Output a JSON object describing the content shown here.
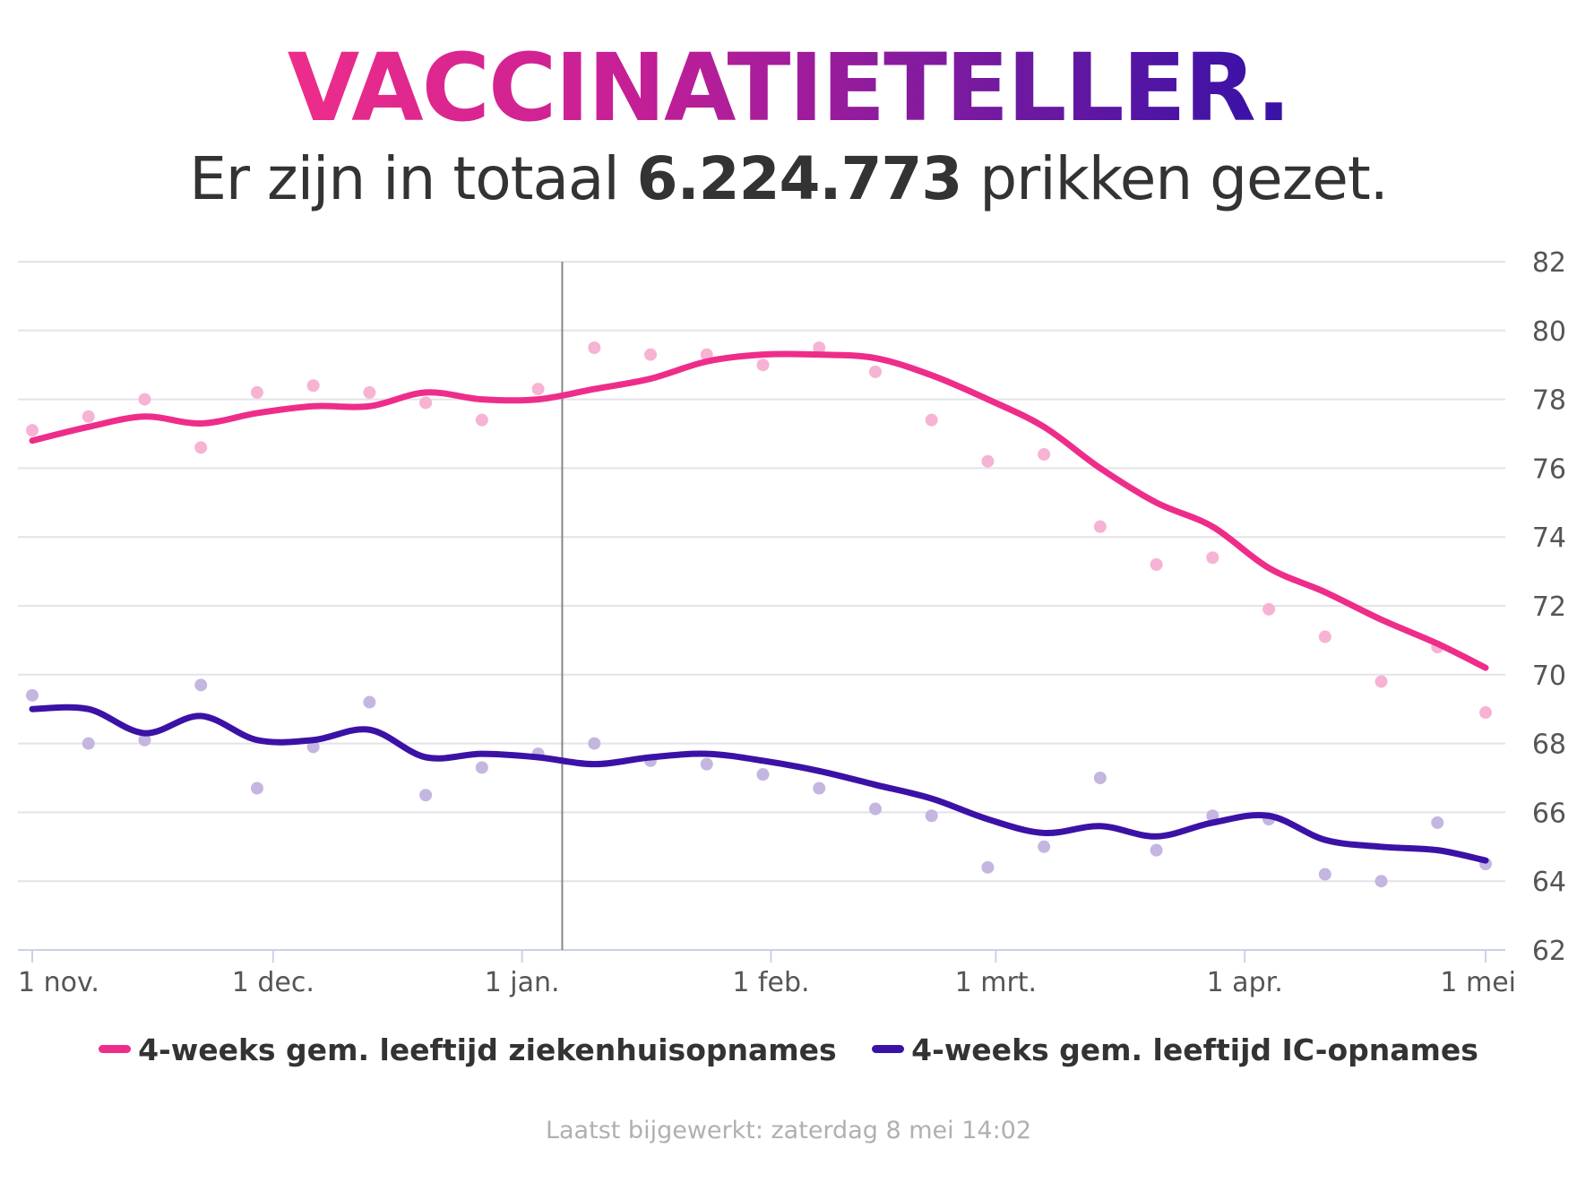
{
  "header": {
    "title": "VACCINATIETELLER",
    "title_dot": ".",
    "subtitle_prefix": "Er zijn in totaal",
    "subtitle_number": "6.224.773",
    "subtitle_suffix": "prikken gezet."
  },
  "colors": {
    "series_hospital": "#ee2d8a",
    "series_hospital_points": "#f7b3d3",
    "series_ic": "#3b12a6",
    "series_ic_points": "#c4b6e0",
    "grid": "#e3e3e8",
    "vline": "#888888",
    "axis_text": "#555555"
  },
  "chart_data": {
    "type": "line",
    "title": "",
    "xlabel": "",
    "ylabel": "",
    "y_axis_side": "right",
    "ylim": [
      62,
      82
    ],
    "yticks": [
      "82",
      "80",
      "78",
      "76",
      "74",
      "72",
      "70",
      "68",
      "66",
      "64",
      "62"
    ],
    "x_range_days": [
      0,
      181
    ],
    "xticks": [
      {
        "label": "1 nov.",
        "day": 0
      },
      {
        "label": "1 dec.",
        "day": 30
      },
      {
        "label": "1 jan.",
        "day": 61
      },
      {
        "label": "1 feb.",
        "day": 92
      },
      {
        "label": "1 mrt.",
        "day": 120
      },
      {
        "label": "1 apr.",
        "day": 151
      },
      {
        "label": "1 mei",
        "day": 181
      }
    ],
    "vertical_marker_day": 66,
    "series": [
      {
        "name": "4-weeks gem. leeftijd ziekenhuisopnames",
        "kind": "smoothed_line_with_points",
        "line_x": [
          0,
          7,
          14,
          21,
          28,
          35,
          42,
          49,
          56,
          63,
          70,
          77,
          84,
          91,
          98,
          105,
          112,
          119,
          126,
          133,
          140,
          147,
          154,
          161,
          168,
          175,
          181
        ],
        "line_y": [
          76.8,
          77.2,
          77.5,
          77.3,
          77.6,
          77.8,
          77.8,
          78.2,
          78.0,
          78.0,
          78.3,
          78.6,
          79.1,
          79.3,
          79.3,
          79.2,
          78.7,
          78.0,
          77.2,
          76.0,
          75.0,
          74.3,
          73.1,
          72.4,
          71.6,
          70.9,
          70.2
        ],
        "points_x": [
          0,
          7,
          14,
          21,
          28,
          35,
          42,
          49,
          56,
          63,
          70,
          77,
          84,
          91,
          98,
          105,
          112,
          119,
          126,
          133,
          140,
          147,
          154,
          161,
          168,
          175,
          181
        ],
        "points_y": [
          77.1,
          77.5,
          78.0,
          76.6,
          78.2,
          78.4,
          78.2,
          77.9,
          77.4,
          78.3,
          79.5,
          79.3,
          79.3,
          79.0,
          79.5,
          78.8,
          77.4,
          76.2,
          76.4,
          74.3,
          73.2,
          73.4,
          71.9,
          71.1,
          69.8,
          70.8,
          68.9
        ]
      },
      {
        "name": "4-weeks gem. leeftijd IC-opnames",
        "kind": "smoothed_line_with_points",
        "line_x": [
          0,
          7,
          14,
          21,
          28,
          35,
          42,
          49,
          56,
          63,
          70,
          77,
          84,
          91,
          98,
          105,
          112,
          119,
          126,
          133,
          140,
          147,
          154,
          161,
          168,
          175,
          181
        ],
        "line_y": [
          69.0,
          69.0,
          68.3,
          68.8,
          68.1,
          68.1,
          68.4,
          67.6,
          67.7,
          67.6,
          67.4,
          67.6,
          67.7,
          67.5,
          67.2,
          66.8,
          66.4,
          65.8,
          65.4,
          65.6,
          65.3,
          65.7,
          65.9,
          65.2,
          65.0,
          64.9,
          64.6
        ],
        "points_x": [
          0,
          7,
          14,
          21,
          28,
          35,
          42,
          49,
          56,
          63,
          70,
          77,
          84,
          91,
          98,
          105,
          112,
          119,
          126,
          133,
          140,
          147,
          154,
          161,
          168,
          175,
          181
        ],
        "points_y": [
          69.4,
          68.0,
          68.1,
          69.7,
          66.7,
          67.9,
          69.2,
          66.5,
          67.3,
          67.7,
          68.0,
          67.5,
          67.4,
          67.1,
          66.7,
          66.1,
          65.9,
          64.4,
          65.0,
          67.0,
          64.9,
          65.9,
          65.8,
          64.2,
          64.0,
          65.7,
          64.5
        ]
      }
    ]
  },
  "legend": {
    "items": [
      {
        "label": "4-weeks gem. leeftijd ziekenhuisopnames"
      },
      {
        "label": "4-weeks gem. leeftijd IC-opnames"
      }
    ]
  },
  "footer": {
    "updated": "Laatst bijgewerkt: zaterdag 8 mei 14:02"
  }
}
